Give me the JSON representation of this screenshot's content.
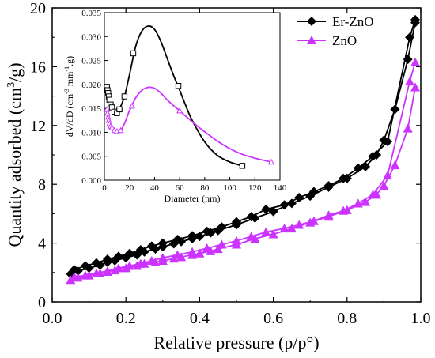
{
  "chart_data": [
    {
      "id": "main",
      "type": "line",
      "xlabel": "Relative pressure (p/p°)",
      "ylabel_prefix": "Quantity adsorbed (cm",
      "ylabel_sup": "3",
      "ylabel_suffix": "/g)",
      "xlim": [
        0.0,
        1.0
      ],
      "ylim": [
        0,
        20
      ],
      "xticks": [
        0.0,
        0.2,
        0.4,
        0.6,
        0.8,
        1.0
      ],
      "xtick_labels": [
        "0.0",
        "0.2",
        "0.4",
        "0.6",
        "0.8",
        "1.0"
      ],
      "yticks": [
        0,
        4,
        8,
        12,
        16,
        20
      ],
      "ytick_labels": [
        "0",
        "4",
        "8",
        "12",
        "16",
        "20"
      ],
      "legend_position": "top-right",
      "series": [
        {
          "name": "Er-ZnO",
          "color": "#000000",
          "marker": "diamond",
          "adsorption": {
            "x": [
              0.05,
              0.07,
              0.1,
              0.13,
              0.15,
              0.17,
              0.2,
              0.23,
              0.25,
              0.28,
              0.3,
              0.33,
              0.35,
              0.38,
              0.4,
              0.43,
              0.45,
              0.5,
              0.55,
              0.6,
              0.65,
              0.7,
              0.75,
              0.8,
              0.85,
              0.88,
              0.9,
              0.93,
              0.965,
              0.985
            ],
            "y": [
              1.9,
              2.1,
              2.3,
              2.5,
              2.7,
              2.8,
              3.0,
              3.2,
              3.4,
              3.6,
              3.75,
              3.95,
              4.1,
              4.3,
              4.45,
              4.7,
              4.85,
              5.25,
              5.7,
              6.15,
              6.7,
              7.2,
              7.8,
              8.4,
              9.2,
              10.0,
              11.0,
              13.1,
              16.5,
              19.0
            ]
          },
          "desorption": {
            "x": [
              0.985,
              0.97,
              0.91,
              0.87,
              0.83,
              0.79,
              0.75,
              0.71,
              0.67,
              0.63,
              0.58,
              0.54,
              0.5,
              0.46,
              0.42,
              0.38,
              0.34,
              0.3,
              0.27,
              0.24,
              0.21,
              0.18,
              0.15,
              0.12,
              0.09,
              0.06
            ],
            "y": [
              19.2,
              18.0,
              10.9,
              9.9,
              9.1,
              8.4,
              7.9,
              7.5,
              7.1,
              6.6,
              6.3,
              5.8,
              5.45,
              5.1,
              4.8,
              4.5,
              4.25,
              4.0,
              3.8,
              3.55,
              3.3,
              3.1,
              2.9,
              2.65,
              2.45,
              2.2
            ]
          }
        },
        {
          "name": "ZnO",
          "color": "#cc33ff",
          "marker": "triangle",
          "adsorption": {
            "x": [
              0.05,
              0.07,
              0.1,
              0.13,
              0.15,
              0.17,
              0.2,
              0.23,
              0.25,
              0.28,
              0.3,
              0.33,
              0.35,
              0.38,
              0.4,
              0.43,
              0.45,
              0.5,
              0.55,
              0.6,
              0.65,
              0.7,
              0.75,
              0.8,
              0.85,
              0.88,
              0.9,
              0.93,
              0.965,
              0.985
            ],
            "y": [
              1.5,
              1.65,
              1.8,
              1.95,
              2.05,
              2.15,
              2.3,
              2.45,
              2.6,
              2.7,
              2.8,
              2.95,
              3.05,
              3.2,
              3.3,
              3.45,
              3.6,
              3.9,
              4.3,
              4.6,
              5.0,
              5.4,
              5.8,
              6.25,
              6.8,
              7.3,
              7.9,
              9.3,
              11.8,
              14.6
            ]
          },
          "desorption": {
            "x": [
              0.985,
              0.97,
              0.91,
              0.87,
              0.83,
              0.79,
              0.75,
              0.71,
              0.67,
              0.63,
              0.58,
              0.54,
              0.5,
              0.46,
              0.42,
              0.38,
              0.34,
              0.3,
              0.27,
              0.24,
              0.21,
              0.18,
              0.15,
              0.12,
              0.09,
              0.06
            ],
            "y": [
              16.3,
              15.0,
              8.6,
              7.3,
              6.7,
              6.2,
              5.9,
              5.5,
              5.25,
              5.0,
              4.75,
              4.45,
              4.15,
              3.9,
              3.65,
              3.4,
              3.2,
              3.0,
              2.8,
              2.6,
              2.45,
              2.3,
              2.1,
              1.95,
              1.8,
              1.7
            ]
          }
        }
      ]
    },
    {
      "id": "inset",
      "type": "line",
      "xlabel": "Diameter (nm)",
      "ylabel_text": "dV/dD (cm",
      "ylabel_sup1": "-3",
      "ylabel_mid": " mm",
      "ylabel_sup2": "-1",
      "ylabel_end": ".g)",
      "xlim": [
        0,
        140
      ],
      "ylim": [
        0.0,
        0.035
      ],
      "xticks": [
        0,
        20,
        40,
        60,
        80,
        100,
        120,
        140
      ],
      "xtick_labels": [
        "0",
        "20",
        "40",
        "60",
        "80",
        "100",
        "120",
        "140"
      ],
      "yticks": [
        0.0,
        0.005,
        0.01,
        0.015,
        0.02,
        0.025,
        0.03,
        0.035
      ],
      "ytick_labels": [
        "0.000",
        "0.005",
        "0.010",
        "0.015",
        "0.020",
        "0.025",
        "0.030",
        "0.035"
      ],
      "series": [
        {
          "name": "Er-ZnO",
          "color": "#000000",
          "marker": "square",
          "points_x": [
            2.0,
            2.5,
            3.0,
            3.5,
            4.0,
            5.0,
            6.0,
            8.0,
            10.0,
            12.0,
            16.0,
            23.0,
            59.0,
            110.0
          ],
          "points_y": [
            0.0195,
            0.0188,
            0.0182,
            0.0175,
            0.0168,
            0.0158,
            0.0152,
            0.0143,
            0.014,
            0.0148,
            0.0175,
            0.0265,
            0.0197,
            0.003
          ],
          "curve_x": [
            2.0,
            4.0,
            6.0,
            8.0,
            10.0,
            12.0,
            16.0,
            20.0,
            25.0,
            30.0,
            35.0,
            40.0,
            45.0,
            50.0,
            55.0,
            60.0,
            65.0,
            70.0,
            80.0,
            90.0,
            100.0,
            110.0
          ],
          "curve_y": [
            0.0195,
            0.0168,
            0.0152,
            0.0142,
            0.014,
            0.0148,
            0.0175,
            0.022,
            0.028,
            0.0312,
            0.0322,
            0.0315,
            0.029,
            0.0255,
            0.022,
            0.0188,
            0.0155,
            0.0125,
            0.008,
            0.0052,
            0.0038,
            0.003
          ]
        },
        {
          "name": "ZnO",
          "color": "#cc33ff",
          "marker": "triangle-open",
          "points_x": [
            2.0,
            2.5,
            3.0,
            3.5,
            4.0,
            5.0,
            6.0,
            8.0,
            10.0,
            13.0,
            22.0,
            60.0,
            133.0
          ],
          "points_y": [
            0.0148,
            0.014,
            0.0132,
            0.0125,
            0.0118,
            0.0113,
            0.011,
            0.0104,
            0.0102,
            0.0104,
            0.0155,
            0.0145,
            0.0038
          ],
          "curve_x": [
            2.0,
            4.0,
            6.0,
            8.0,
            10.0,
            13.0,
            16.0,
            20.0,
            25.0,
            30.0,
            35.0,
            40.0,
            45.0,
            50.0,
            55.0,
            60.0,
            70.0,
            80.0,
            90.0,
            100.0,
            110.0,
            120.0,
            133.0
          ],
          "curve_y": [
            0.0148,
            0.0118,
            0.011,
            0.0104,
            0.0102,
            0.0104,
            0.0118,
            0.0145,
            0.0172,
            0.0188,
            0.0194,
            0.0192,
            0.0182,
            0.0168,
            0.0156,
            0.0145,
            0.0122,
            0.0101,
            0.0082,
            0.0066,
            0.0054,
            0.0046,
            0.0038
          ]
        }
      ]
    }
  ]
}
